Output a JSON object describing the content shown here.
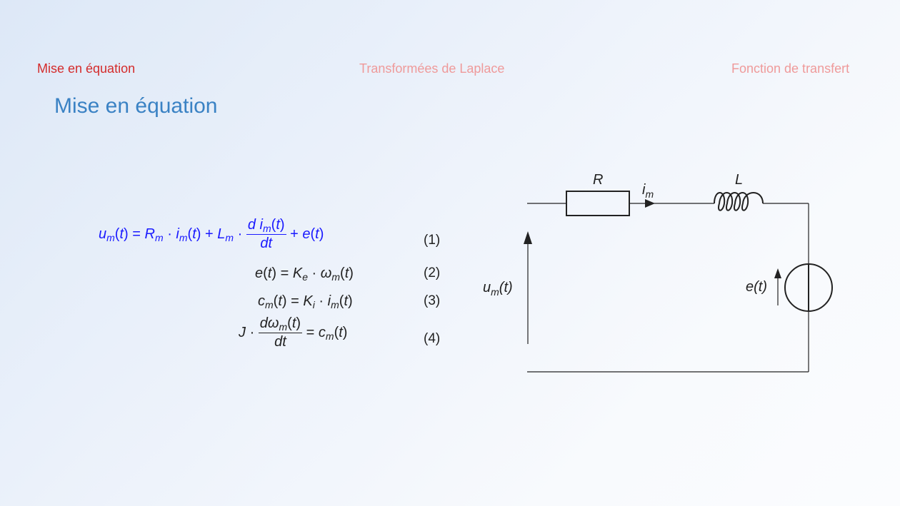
{
  "nav": {
    "items": [
      "Mise en équation",
      "Transformées de Laplace",
      "Fonction de transfert"
    ],
    "active_index": 0
  },
  "frame": {
    "title": "Mise en équation"
  },
  "equations": [
    {
      "number": "(1)"
    },
    {
      "number": "(2)"
    },
    {
      "number": "(3)"
    },
    {
      "number": "(4)"
    }
  ],
  "circuit": {
    "resistor_label": "R",
    "inductor_label": "L",
    "current_label": "i",
    "current_sub": "m",
    "voltage_label": "u",
    "voltage_sub": "m",
    "voltage_arg": "(t)",
    "emf_label": "e(t)"
  },
  "colors": {
    "active_nav": "#d42b2b",
    "inactive_nav": "#ef9a9a",
    "title": "#3a82c4",
    "equation_1": "#1a1aff"
  }
}
